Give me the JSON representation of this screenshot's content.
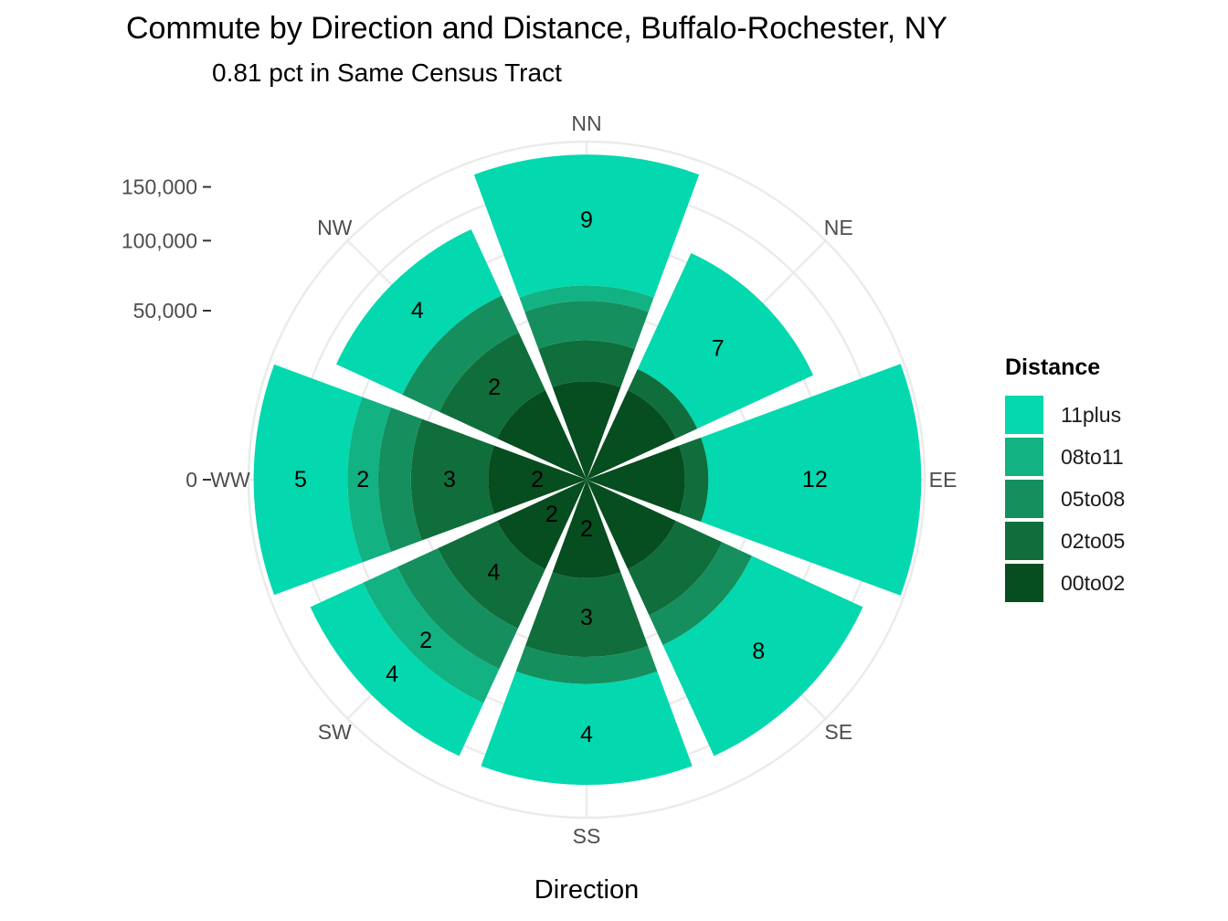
{
  "chart_data": {
    "type": "polar-stacked-bar",
    "title": "Commute by Direction and Distance, Buffalo-Rochester, NY",
    "subtitle": "0.81 pct in Same Census Tract",
    "xlabel": "Direction",
    "ylabel": "",
    "ylim": [
      0,
      200000
    ],
    "y_ticks": [
      0,
      50000,
      100000,
      150000
    ],
    "y_tick_labels": [
      "0",
      "50,000",
      "100,000",
      "150,000"
    ],
    "categories": [
      "NN",
      "NE",
      "EE",
      "SE",
      "SS",
      "SW",
      "WW",
      "NW"
    ],
    "series": [
      {
        "name": "00to02",
        "color": "#064d1f",
        "values": [
          17000,
          17000,
          17000,
          17000,
          17000,
          17000,
          17000,
          17000
        ]
      },
      {
        "name": "02to05",
        "color": "#0f6e3c",
        "values": [
          17000,
          9000,
          9000,
          22000,
          38000,
          30000,
          37000,
          29000
        ]
      },
      {
        "name": "05to08",
        "color": "#158f5e",
        "values": [
          22000,
          0,
          0,
          19000,
          18000,
          29000,
          22000,
          26000
        ]
      },
      {
        "name": "08to11",
        "color": "#12b283",
        "values": [
          10000,
          0,
          0,
          0,
          0,
          30000,
          24000,
          0
        ]
      },
      {
        "name": "11plus",
        "color": "#04d8af",
        "values": [
          119000,
          83000,
          170000,
          104000,
          90000,
          56000,
          94000,
          61000
        ]
      }
    ],
    "bar_labels": [
      {
        "direction": "NN",
        "series": "11plus",
        "label": "9"
      },
      {
        "direction": "NE",
        "series": "11plus",
        "label": "7"
      },
      {
        "direction": "EE",
        "series": "11plus",
        "label": "12"
      },
      {
        "direction": "SE",
        "series": "11plus",
        "label": "8"
      },
      {
        "direction": "SS",
        "series": "11plus",
        "label": "4"
      },
      {
        "direction": "SS",
        "series": "02to05",
        "label": "3"
      },
      {
        "direction": "SS",
        "series": "00to02",
        "label": "2"
      },
      {
        "direction": "SW",
        "series": "11plus",
        "label": "4"
      },
      {
        "direction": "SW",
        "series": "08to11",
        "label": "2"
      },
      {
        "direction": "SW",
        "series": "02to05",
        "label": "4"
      },
      {
        "direction": "SW",
        "series": "00to02",
        "label": "2"
      },
      {
        "direction": "WW",
        "series": "11plus",
        "label": "5"
      },
      {
        "direction": "WW",
        "series": "08to11",
        "label": "2"
      },
      {
        "direction": "WW",
        "series": "02to05",
        "label": "3"
      },
      {
        "direction": "WW",
        "series": "00to02",
        "label": "2"
      },
      {
        "direction": "NW",
        "series": "11plus",
        "label": "4"
      },
      {
        "direction": "NW",
        "series": "02to05",
        "label": "2"
      }
    ],
    "legend": {
      "title": "Distance",
      "position": "right",
      "order": [
        "11plus",
        "08to11",
        "05to08",
        "02to05",
        "00to02"
      ]
    },
    "grid": true
  }
}
